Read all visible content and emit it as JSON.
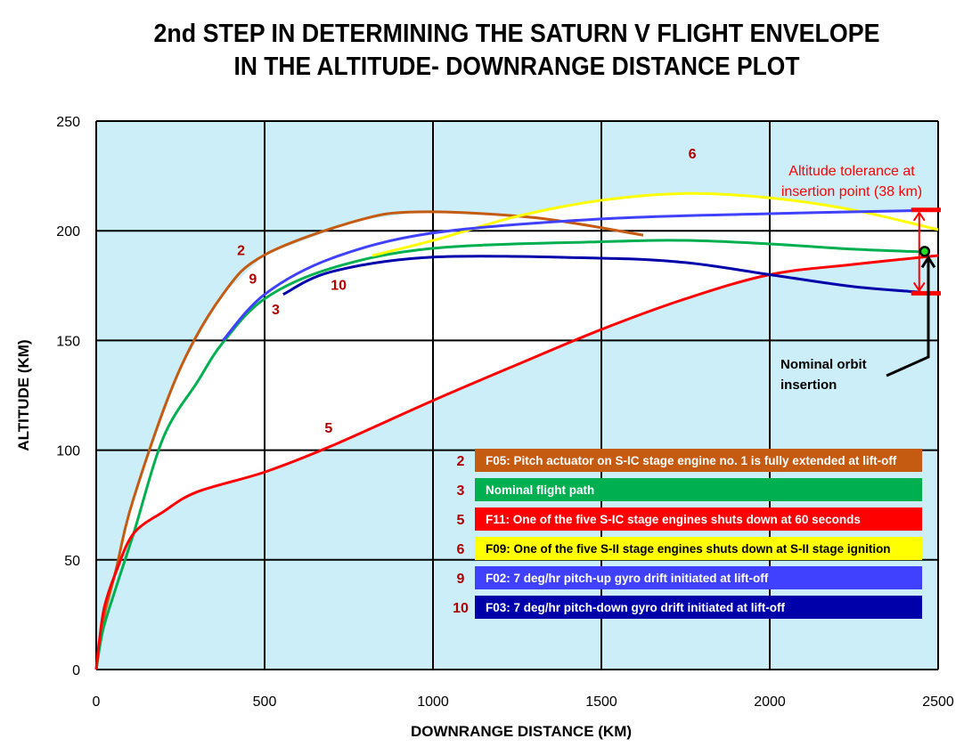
{
  "chart_data": {
    "type": "line",
    "title": [
      "2nd STEP IN DETERMINING THE SATURN V  FLIGHT  ENVELOPE",
      "IN THE ALTITUDE- DOWNRANGE DISTANCE PLOT"
    ],
    "xlabel": "DOWNRANGE DISTANCE (KM)",
    "ylabel": "ALTITUDE (KM)",
    "xlim": [
      0,
      2500
    ],
    "ylim": [
      0,
      250
    ],
    "xticks": [
      0,
      500,
      1000,
      1500,
      2000,
      2500
    ],
    "yticks": [
      0,
      50,
      100,
      150,
      200,
      250
    ],
    "grid": true,
    "plot_background": "#cbeef9",
    "envelope_fill": "#ffffff",
    "series": [
      {
        "id": "2",
        "name": "F05: Pitch actuator on S-IC stage engine no. 1 is fully extended at lift-off",
        "color": "#c55a11",
        "text_color": "#ffffff",
        "x": [
          0,
          20,
          58,
          111,
          243,
          376,
          500,
          773,
          957,
          1300,
          1624
        ],
        "y": [
          0,
          22,
          45,
          78,
          135,
          171,
          189,
          204.5,
          208.6,
          206,
          198
        ]
      },
      {
        "id": "3",
        "name": "Nominal flight path",
        "color": "#00b050",
        "text_color": "#ffffff",
        "x": [
          0,
          20,
          58,
          111,
          200,
          300,
          376,
          500,
          700,
          1000,
          1500,
          1750,
          2000,
          2250,
          2450
        ],
        "y": [
          0,
          18,
          37,
          62,
          106,
          131,
          149,
          169,
          183,
          192,
          195,
          195.6,
          194,
          191.6,
          190.4
        ]
      },
      {
        "id": "5",
        "name": "F11: One of the five S-IC stage engines shuts down at 60 seconds",
        "color": "#ff0000",
        "text_color": "#ffffff",
        "x": [
          0,
          10,
          25,
          60,
          111,
          200,
          300,
          500,
          700,
          1000,
          1250,
          1500,
          1750,
          2000,
          2250,
          2500
        ],
        "y": [
          0,
          14,
          29,
          45,
          62,
          72,
          81,
          90,
          102,
          122.6,
          139,
          155,
          169,
          180,
          184.7,
          188.7
        ]
      },
      {
        "id": "6",
        "name": "F09: One of the five S-II stage engines shuts down at S-II stage ignition",
        "color": "#ffff00",
        "text_color": "#000000",
        "x": [
          820,
          1000,
          1250,
          1500,
          1750,
          2000,
          2250,
          2500
        ],
        "y": [
          188.7,
          195.6,
          206.6,
          213.9,
          217,
          215,
          209.4,
          200.5
        ]
      },
      {
        "id": "9",
        "name": "F02: 7 deg/hr pitch-up gyro drift initiated at lift-off",
        "color": "#4040ff",
        "text_color": "#ffffff",
        "x": [
          376,
          500,
          700,
          1000,
          1500,
          2000,
          2500
        ],
        "y": [
          150,
          171,
          187.5,
          199,
          205.4,
          207.8,
          209.4
        ]
      },
      {
        "id": "10",
        "name": "F03: 7 deg/hr pitch-down gyro drift initiated at lift-off",
        "color": "#0000aa",
        "text_color": "#ffffff",
        "x": [
          555,
          700,
          1000,
          1500,
          1750,
          2000,
          2250,
          2450
        ],
        "y": [
          171,
          181.4,
          188,
          187.5,
          185.5,
          180,
          174.5,
          172
        ]
      }
    ],
    "curve_labels": [
      {
        "text": "2",
        "x": 430,
        "y": 189
      },
      {
        "text": "9",
        "x": 465,
        "y": 176
      },
      {
        "text": "3",
        "x": 533,
        "y": 162
      },
      {
        "text": "10",
        "x": 720,
        "y": 173
      },
      {
        "text": "5",
        "x": 690,
        "y": 108
      },
      {
        "text": "6",
        "x": 1770,
        "y": 233
      }
    ],
    "annotations": {
      "tolerance_text": [
        "Altitude tolerance at",
        "insertion point (38 km)"
      ],
      "tolerance_color": "#ff0000",
      "tolerance_upper": 209.5,
      "tolerance_lower": 171.5,
      "tolerance_x": [
        2420,
        2500
      ],
      "insertion_text": [
        "Nominal orbit",
        "insertion"
      ],
      "insertion_point": {
        "x": 2460,
        "y": 190.6,
        "color": "#22dd22"
      }
    }
  }
}
